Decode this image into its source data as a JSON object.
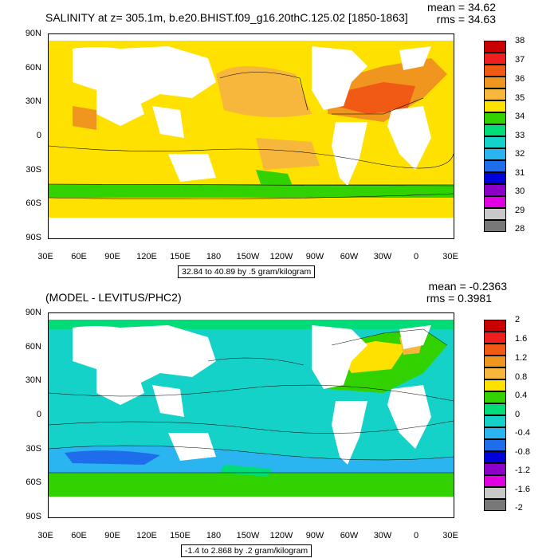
{
  "top": {
    "title": "SALINITY at z= 305.1m, b.e20.BHIST.f09_g16.20thC.125.02 [1850-1863]",
    "mean_text": "mean = 34.62",
    "rms_text": "rms = 34.63",
    "subtitle": "32.84 to 40.89 by .5 gram/kilogram",
    "colorbar_labels": [
      "38",
      "37",
      "36",
      "35",
      "34",
      "33",
      "32",
      "31",
      "30",
      "29",
      "28"
    ],
    "colorbar_colors": [
      "#c80000",
      "#f01e1e",
      "#f05a14",
      "#f0961e",
      "#f7b73c",
      "#ffe100",
      "#32d200",
      "#00dc78",
      "#14d2c8",
      "#2ab4f0",
      "#1e6eeb",
      "#0000dc",
      "#8c00c8",
      "#e100e1",
      "#c8c8c8",
      "#787878"
    ]
  },
  "bottom": {
    "title": "(MODEL - LEVITUS/PHC2)",
    "mean_text": "mean = -0.2363",
    "rms_text": "rms = 0.3981",
    "subtitle": "-1.4 to 2.868 by .2 gram/kilogram",
    "colorbar_labels": [
      "2",
      "1.6",
      "1.2",
      "0.8",
      "0.4",
      "0",
      "-0.4",
      "-0.8",
      "-1.2",
      "-1.6",
      "-2"
    ],
    "colorbar_colors": [
      "#c80000",
      "#f01e1e",
      "#f05a14",
      "#f0961e",
      "#f7b73c",
      "#ffe100",
      "#32d200",
      "#00dc78",
      "#14d2c8",
      "#2ab4f0",
      "#1e6eeb",
      "#0000dc",
      "#8c00c8",
      "#e100e1",
      "#c8c8c8",
      "#787878"
    ]
  },
  "lat_labels": [
    "90N",
    "60N",
    "30N",
    "0",
    "30S",
    "60S",
    "90S"
  ],
  "lon_labels": [
    "30E",
    "60E",
    "90E",
    "120E",
    "150E",
    "180",
    "150W",
    "120W",
    "90W",
    "60W",
    "30W",
    "0",
    "30E"
  ],
  "colors": {
    "land": "#ffffff",
    "contour": "#000000"
  }
}
